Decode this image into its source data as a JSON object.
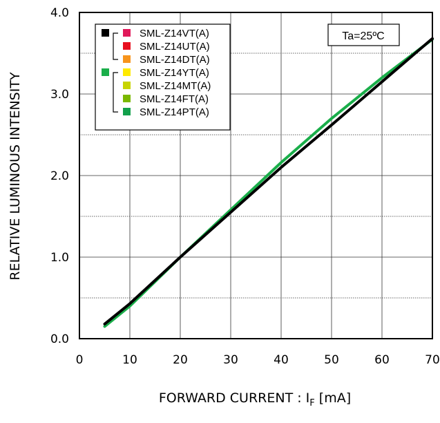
{
  "chart_data": {
    "type": "line",
    "xlabel_main": "FORWARD CURRENT : I",
    "xlabel_sub": "F",
    "xlabel_unit": " [mA]",
    "ylabel": "RELATIVE LUMINOUS INTENSITY",
    "xlim": [
      0,
      70
    ],
    "ylim": [
      0,
      4.0
    ],
    "x_ticks": [
      "0",
      "10",
      "20",
      "30",
      "40",
      "50",
      "60",
      "70"
    ],
    "y_ticks": [
      "0.0",
      "1.0",
      "2.0",
      "3.0",
      "4.0"
    ],
    "grid": true,
    "annotation": "Ta=25ºC",
    "legend": {
      "placement": "top-left",
      "groups": [
        {
          "marker_color": "#000000",
          "items": [
            {
              "label": "SML-Z14VT(A)",
              "color": "#e0195a"
            },
            {
              "label": "SML-Z14UT(A)",
              "color": "#e8101f"
            },
            {
              "label": "SML-Z14DT(A)",
              "color": "#f7941d"
            }
          ]
        },
        {
          "marker_color": "#1aae4a",
          "items": [
            {
              "label": "SML-Z14YT(A)",
              "color": "#ffea00"
            },
            {
              "label": "SML-Z14MT(A)",
              "color": "#c8d400"
            },
            {
              "label": "SML-Z14FT(A)",
              "color": "#7ab800"
            },
            {
              "label": "SML-Z14PT(A)",
              "color": "#12a04b"
            }
          ]
        }
      ]
    },
    "series": [
      {
        "color": "#1aae4a",
        "x": [
          5,
          10,
          20,
          30,
          40,
          50,
          60,
          70
        ],
        "y": [
          0.15,
          0.4,
          1.0,
          1.58,
          2.16,
          2.7,
          3.2,
          3.67
        ]
      },
      {
        "color": "#000000",
        "x": [
          5,
          10,
          20,
          30,
          40,
          50,
          60,
          70
        ],
        "y": [
          0.18,
          0.43,
          1.0,
          1.55,
          2.1,
          2.62,
          3.15,
          3.68
        ]
      }
    ]
  }
}
